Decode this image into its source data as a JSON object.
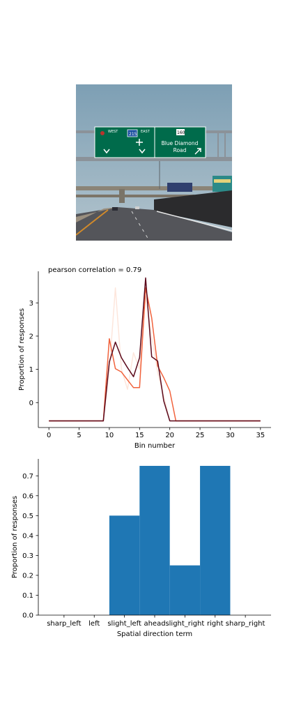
{
  "image": {
    "sign_left": {
      "west": "WEST",
      "east": "EAST",
      "shield": "215"
    },
    "sign_right": {
      "shield": "160",
      "line1": "Blue Diamond",
      "line2": "Road"
    }
  },
  "chart_data": [
    {
      "type": "line",
      "title": "pearson correlation = 0.79",
      "xlabel": "Bin number",
      "ylabel": "Proportion of responses",
      "xlim": [
        -1.75,
        36.75
      ],
      "ylim": [
        -0.75,
        3.95
      ],
      "xticks": [
        0,
        5,
        10,
        15,
        20,
        25,
        30,
        35
      ],
      "yticks": [
        0,
        1,
        2,
        3
      ],
      "x": [
        0,
        1,
        2,
        3,
        4,
        5,
        6,
        7,
        8,
        9,
        10,
        11,
        12,
        13,
        14,
        15,
        16,
        17,
        18,
        19,
        20,
        21,
        22,
        23,
        24,
        25,
        26,
        27,
        28,
        29,
        30,
        31,
        32,
        33,
        34,
        35
      ],
      "series": [
        {
          "color": "#fde6dc",
          "values": [
            -0.55,
            -0.55,
            -0.55,
            -0.55,
            -0.55,
            -0.55,
            -0.55,
            -0.55,
            -0.55,
            -0.55,
            1.0,
            3.45,
            1.0,
            0.4,
            1.5,
            1.0,
            3.2,
            2.0,
            0.9,
            0.2,
            -0.55,
            -0.55,
            -0.55,
            -0.55,
            -0.55,
            -0.55,
            -0.55,
            -0.55,
            -0.55,
            -0.55,
            -0.55,
            -0.55,
            -0.55,
            -0.55,
            -0.55,
            -0.55
          ]
        },
        {
          "color": "#f1623c",
          "values": [
            -0.55,
            -0.55,
            -0.55,
            -0.55,
            -0.55,
            -0.55,
            -0.55,
            -0.55,
            -0.55,
            -0.55,
            1.92,
            1.02,
            0.92,
            0.68,
            0.45,
            0.45,
            3.45,
            2.55,
            1.1,
            0.75,
            0.35,
            -0.55,
            -0.55,
            -0.55,
            -0.55,
            -0.55,
            -0.55,
            -0.55,
            -0.55,
            -0.55,
            -0.55,
            -0.55,
            -0.55,
            -0.55,
            -0.55,
            -0.55
          ]
        },
        {
          "color": "#5b0a1c",
          "values": [
            -0.55,
            -0.55,
            -0.55,
            -0.55,
            -0.55,
            -0.55,
            -0.55,
            -0.55,
            -0.55,
            -0.55,
            1.22,
            1.82,
            1.35,
            1.05,
            0.78,
            1.35,
            3.75,
            1.38,
            1.25,
            0.05,
            -0.55,
            -0.55,
            -0.55,
            -0.55,
            -0.55,
            -0.55,
            -0.55,
            -0.55,
            -0.55,
            -0.55,
            -0.55,
            -0.55,
            -0.55,
            -0.55,
            -0.55,
            -0.55
          ]
        }
      ]
    },
    {
      "type": "bar",
      "xlabel": "Spatial direction term",
      "ylabel": "Proportion of responses",
      "ylim": [
        0,
        0.785
      ],
      "yticks": [
        0.0,
        0.1,
        0.2,
        0.3,
        0.4,
        0.5,
        0.6,
        0.7
      ],
      "ytick_labels": [
        "0.0",
        "0.1",
        "0.2",
        "0.3",
        "0.4",
        "0.5",
        "0.6",
        "0.7"
      ],
      "categories": [
        "sharp_left",
        "left",
        "slight_left",
        "ahead",
        "slight_right",
        "right",
        "sharp_right"
      ],
      "values": [
        0,
        0,
        0.5,
        0.75,
        0.25,
        0.75,
        0
      ],
      "color": "#1f77b4"
    }
  ]
}
